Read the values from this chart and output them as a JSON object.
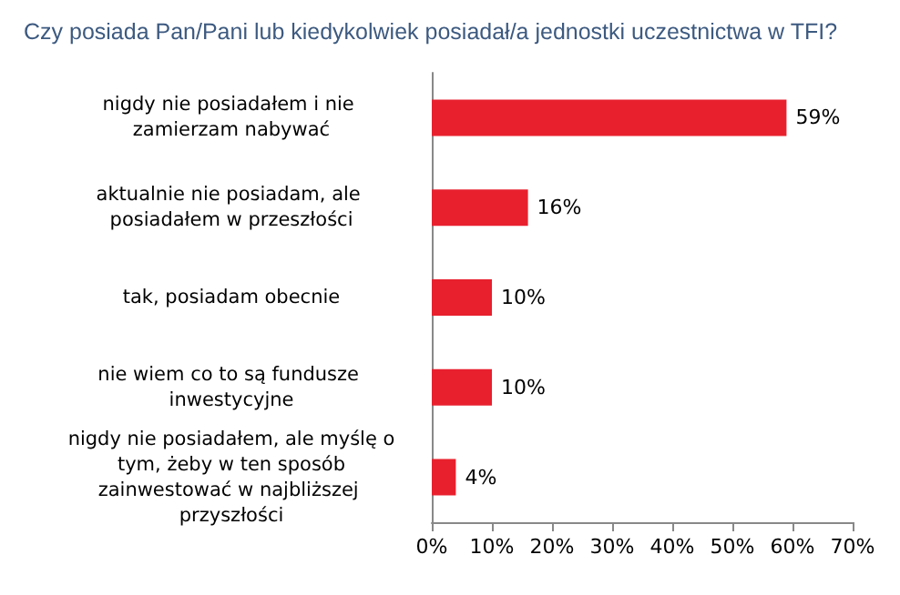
{
  "chart_data": {
    "type": "bar",
    "orientation": "horizontal",
    "title": "Czy posiada Pan/Pani lub kiedykolwiek posiadał/a jednostki uczestnictwa w TFI?",
    "categories": [
      "nigdy nie posiadałem i nie zamierzam nabywać",
      "aktualnie nie posiadam, ale posiadałem w przeszłości",
      "tak, posiadam obecnie",
      "nie wiem co to są fundusze inwestycyjne",
      "nigdy nie posiadałem, ale myślę o tym, żeby w ten sposób zainwestować w najbliższej przyszłości"
    ],
    "values": [
      59,
      16,
      10,
      10,
      4
    ],
    "value_labels": [
      "59%",
      "16%",
      "10%",
      "10%",
      "4%"
    ],
    "color": "#e8202e",
    "xlim": [
      0,
      70
    ],
    "xticks": [
      {
        "value": 0,
        "label": "0%"
      },
      {
        "value": 10,
        "label": "10%"
      },
      {
        "value": 20,
        "label": "20%"
      },
      {
        "value": 30,
        "label": "30%"
      },
      {
        "value": 40,
        "label": "40%"
      },
      {
        "value": 50,
        "label": "50%"
      },
      {
        "value": 60,
        "label": "60%"
      },
      {
        "value": 70,
        "label": "70%"
      }
    ],
    "grid": false
  }
}
